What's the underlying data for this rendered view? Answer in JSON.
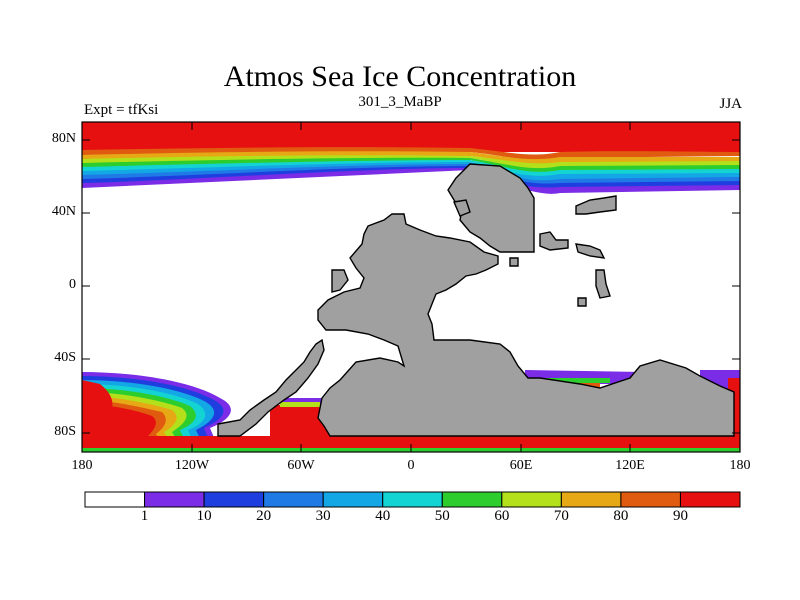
{
  "title": "Atmos Sea Ice Concentration",
  "subtitle": "301_3_MaBP",
  "left_label": "Expt = tfKsi",
  "right_label": "JJA",
  "lat_labels": [
    "80N",
    "40N",
    "0",
    "40S",
    "80S"
  ],
  "lon_labels": [
    "180",
    "120W",
    "60W",
    "0",
    "60E",
    "120E",
    "180"
  ],
  "colorbar": {
    "labels": [
      "1",
      "10",
      "20",
      "30",
      "40",
      "50",
      "60",
      "70",
      "80",
      "90"
    ],
    "colors": [
      "#ffffff",
      "#7a2ce6",
      "#1f3ee0",
      "#1f7ae6",
      "#13a7e6",
      "#13d3d3",
      "#2ecd2e",
      "#b3e01a",
      "#e6a815",
      "#e05a10",
      "#e61010"
    ]
  },
  "colors": {
    "land": "#a0a0a0",
    "ocean": "#ffffff",
    "ice": "#e61010"
  }
}
